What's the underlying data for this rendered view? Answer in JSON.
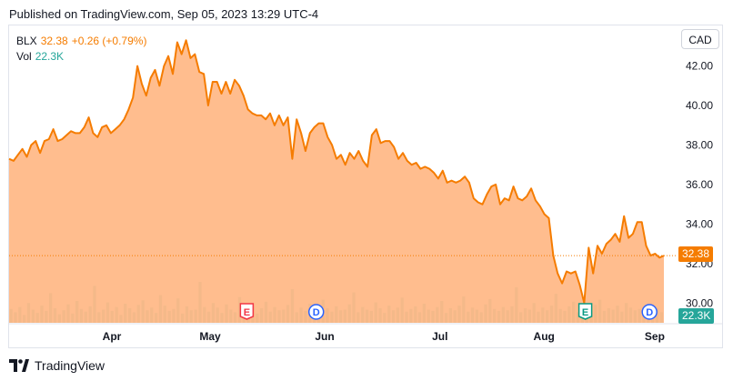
{
  "header": {
    "published": "Published on TradingView.com, Sep 05, 2023 13:29 UTC-4"
  },
  "legend": {
    "symbol": "BLX",
    "price": "32.38",
    "change": "+0.26 (+0.79%)",
    "vol_label": "Vol",
    "vol_value": "22.3K"
  },
  "currency_button": "CAD",
  "price_tag": "32.38",
  "vol_tag": "22.3K",
  "footer": {
    "brand": "TradingView",
    "logo_icon": "tradingview-logo-icon"
  },
  "colors": {
    "line": "#f57c00",
    "area": "#ffb27a",
    "volume": "#26a69a",
    "tag_price": "#f57c00",
    "tag_volume": "#26a69a"
  },
  "chart_data": {
    "type": "area",
    "title": "",
    "xlabel": "",
    "ylabel": "",
    "x_ticks": [
      "Apr",
      "May",
      "Jun",
      "Jul",
      "Aug",
      "Sep"
    ],
    "y_ticks": [
      "30.00",
      "32.00",
      "34.00",
      "36.00",
      "38.00",
      "40.00",
      "42.00"
    ],
    "ylim": [
      29.0,
      43.5
    ],
    "grid": false,
    "series": [
      {
        "values": [
          37.3,
          37.2,
          37.5,
          37.8,
          37.4,
          38.0,
          38.2,
          37.6,
          38.2,
          38.3,
          38.8,
          38.2,
          38.3,
          38.5,
          38.7,
          38.6,
          38.6,
          38.9,
          39.4,
          38.6,
          38.4,
          38.9,
          39.0,
          38.6,
          38.8,
          39.0,
          39.3,
          39.8,
          40.4,
          42.0,
          41.1,
          40.5,
          41.4,
          41.8,
          41.0,
          42.0,
          42.5,
          41.6,
          43.2,
          42.6,
          43.3,
          42.4,
          42.6,
          41.7,
          41.6,
          40.0,
          41.2,
          41.2,
          40.6,
          41.2,
          40.6,
          41.3,
          41.0,
          40.5,
          39.8,
          39.6,
          39.5,
          39.5,
          39.3,
          39.6,
          39.0,
          39.5,
          39.0,
          39.4,
          37.3,
          39.3,
          38.6,
          37.7,
          38.6,
          38.9,
          39.1,
          39.1,
          38.4,
          38.0,
          37.3,
          37.5,
          37.0,
          37.6,
          37.3,
          37.7,
          37.2,
          36.9,
          38.5,
          38.8,
          38.1,
          38.2,
          38.2,
          37.9,
          37.3,
          37.6,
          37.2,
          37.0,
          37.1,
          36.8,
          36.9,
          36.8,
          36.6,
          36.3,
          36.7,
          36.1,
          36.2,
          36.1,
          36.2,
          36.4,
          36.1,
          35.3,
          35.1,
          35.0,
          35.5,
          35.9,
          36.0,
          35.0,
          35.3,
          35.2,
          35.9,
          35.3,
          35.2,
          35.4,
          35.8,
          35.2,
          34.9,
          34.5,
          34.3,
          32.4,
          31.5,
          31.0,
          31.6,
          31.5,
          31.6,
          30.9,
          30.0,
          32.8,
          31.5,
          32.9,
          32.5,
          33.0,
          33.2,
          33.5,
          33.1,
          34.4,
          33.3,
          33.5,
          34.1,
          34.1,
          32.9,
          32.4,
          32.5,
          32.3,
          32.4
        ]
      }
    ],
    "volume": {
      "label": "Vol",
      "values": [
        2.1,
        1.6,
        2.4,
        1.2,
        3.0,
        2.0,
        1.5,
        2.6,
        1.8,
        4.5,
        2.2,
        1.3,
        1.9,
        2.8,
        1.4,
        3.3,
        2.1,
        1.7,
        2.5,
        5.6,
        1.6,
        2.0,
        3.1,
        1.8,
        2.4,
        1.2,
        2.9,
        2.2,
        1.6,
        2.7,
        3.4,
        1.9,
        2.3,
        1.5,
        4.2,
        2.6,
        1.8,
        2.1,
        3.7,
        1.4,
        2.5,
        1.9,
        2.0,
        6.2,
        2.4,
        1.7,
        3.0,
        2.3,
        1.5,
        2.8,
        2.0,
        1.6,
        3.9,
        2.1,
        1.8,
        2.6,
        1.4,
        2.2,
        3.2,
        1.7,
        2.4,
        1.9,
        2.0,
        2.7,
        5.1,
        1.6,
        2.3,
        1.8,
        2.9,
        2.1,
        1.5,
        3.5,
        2.2,
        1.7,
        2.5,
        1.9,
        2.0,
        2.8,
        4.6,
        1.6,
        2.4,
        2.0,
        1.8,
        3.1,
        2.2,
        1.5,
        2.6,
        1.9,
        2.3,
        3.8,
        1.7,
        2.1,
        2.5,
        1.6,
        2.9,
        2.0,
        1.8,
        2.4,
        3.3,
        1.5,
        2.2,
        1.9,
        2.6,
        4.0,
        1.7,
        2.3,
        2.0,
        1.6,
        2.8,
        3.6,
        2.1,
        1.8,
        2.4,
        1.9,
        2.5,
        5.4,
        1.6,
        2.2,
        2.0,
        3.0,
        1.7,
        2.3,
        1.9,
        2.6,
        4.4,
        2.1,
        1.8,
        2.5,
        3.2,
        1.6,
        2.0,
        2.4,
        1.9,
        2.7,
        3.5,
        1.8,
        2.2,
        2.0,
        2.6,
        1.7,
        3.0,
        2.3,
        1.9,
        2.1,
        2.4,
        1.8,
        2.0,
        2.2,
        1.6
      ]
    },
    "events": [
      {
        "type": "earnings",
        "label": "E",
        "color": "#f23645",
        "x_fraction": 0.363
      },
      {
        "type": "dividend",
        "label": "D",
        "color": "#2962ff",
        "x_fraction": 0.469
      },
      {
        "type": "earnings",
        "label": "E",
        "color": "#089981",
        "x_fraction": 0.88
      },
      {
        "type": "dividend",
        "label": "D",
        "color": "#2962ff",
        "x_fraction": 0.978
      }
    ]
  }
}
